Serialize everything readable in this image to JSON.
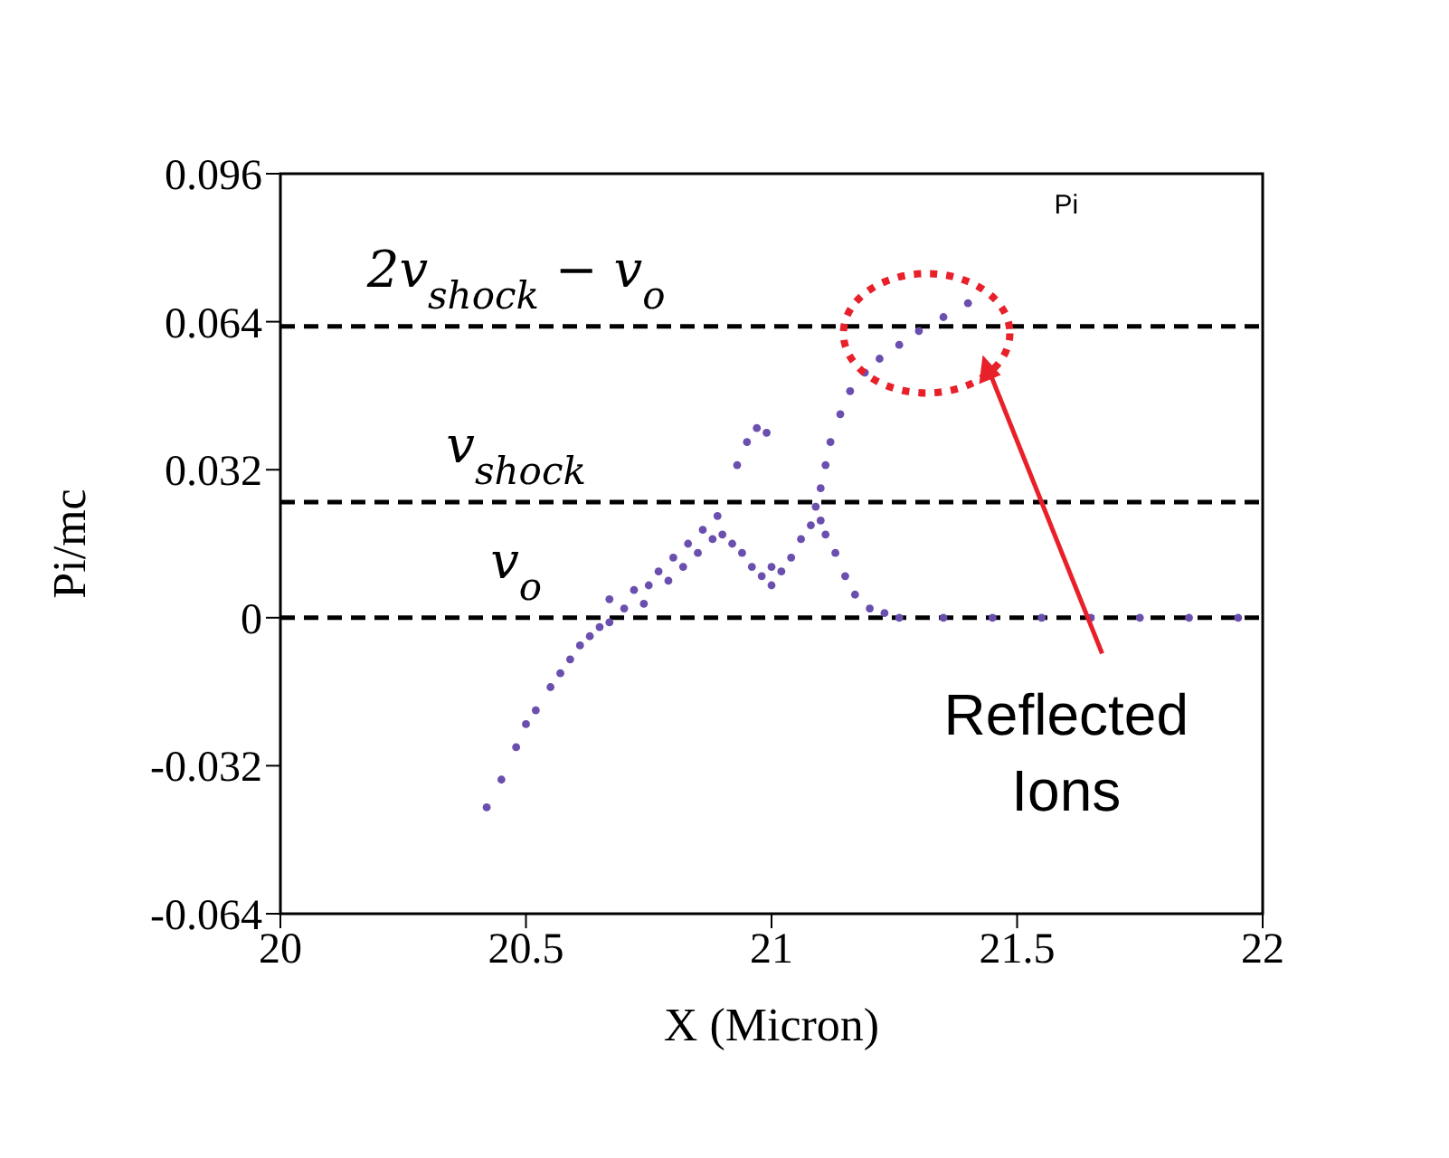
{
  "chart_data": {
    "type": "scatter",
    "xlabel": "X (Micron)",
    "ylabel": "Pi/mc",
    "marker": "circle",
    "xlim": [
      20,
      22
    ],
    "xticks": [
      20,
      20.5,
      21,
      21.5,
      22
    ],
    "ylim": [
      -0.064,
      0.096
    ],
    "yticks": [
      -0.064,
      -0.032,
      0,
      0.032,
      0.064,
      0.096
    ],
    "series": [
      {
        "color": "#6a4fae",
        "x": [
          20.42,
          20.45,
          20.48,
          20.5,
          20.52,
          20.55,
          20.57,
          20.59,
          20.61,
          20.63,
          20.65,
          20.67,
          20.67,
          20.7,
          20.72,
          20.74,
          20.75,
          20.77,
          20.79,
          20.8,
          20.82,
          20.83,
          20.85,
          20.86,
          20.88,
          20.89,
          20.9,
          20.92,
          20.94,
          20.96,
          20.98,
          21.0,
          21.0,
          21.02,
          21.04,
          21.06,
          21.08,
          21.09,
          21.1,
          21.11,
          21.13,
          21.15,
          21.17,
          21.2,
          21.23,
          21.26,
          21.35,
          21.45,
          21.55,
          21.65,
          21.75,
          21.85,
          21.95,
          21.1,
          21.11,
          21.12,
          21.14,
          21.16,
          21.19,
          21.22,
          21.26,
          21.3,
          21.35,
          21.4,
          20.93,
          20.95,
          20.97,
          20.99
        ],
        "values": [
          -0.041,
          -0.035,
          -0.028,
          -0.023,
          -0.02,
          -0.015,
          -0.012,
          -0.009,
          -0.006,
          -0.004,
          -0.002,
          -0.001,
          0.004,
          0.002,
          0.006,
          0.003,
          0.007,
          0.01,
          0.008,
          0.013,
          0.011,
          0.016,
          0.014,
          0.019,
          0.017,
          0.022,
          0.018,
          0.016,
          0.014,
          0.011,
          0.009,
          0.007,
          0.011,
          0.01,
          0.013,
          0.017,
          0.02,
          0.024,
          0.021,
          0.018,
          0.014,
          0.009,
          0.005,
          0.002,
          0.001,
          0,
          0,
          0,
          0,
          0,
          0,
          0,
          0,
          0.028,
          0.033,
          0.038,
          0.044,
          0.049,
          0.053,
          0.056,
          0.059,
          0.062,
          0.065,
          0.068,
          0.033,
          0.038,
          0.041,
          0.04
        ]
      }
    ],
    "ref_lines": [
      {
        "axis": "y",
        "value": 0.063,
        "label": "2v$_{shock}$ − v$_{o}$",
        "line_style": "dashed",
        "color": "#000000"
      },
      {
        "axis": "y",
        "value": 0.025,
        "label": "v$_{shock}$",
        "line_style": "dashed",
        "color": "#000000"
      },
      {
        "axis": "y",
        "value": 0,
        "label": "v$_{o}$",
        "line_style": "dashed",
        "color": "#000000"
      }
    ],
    "annotations": [
      "Pi",
      "Reflected Ions"
    ]
  }
}
